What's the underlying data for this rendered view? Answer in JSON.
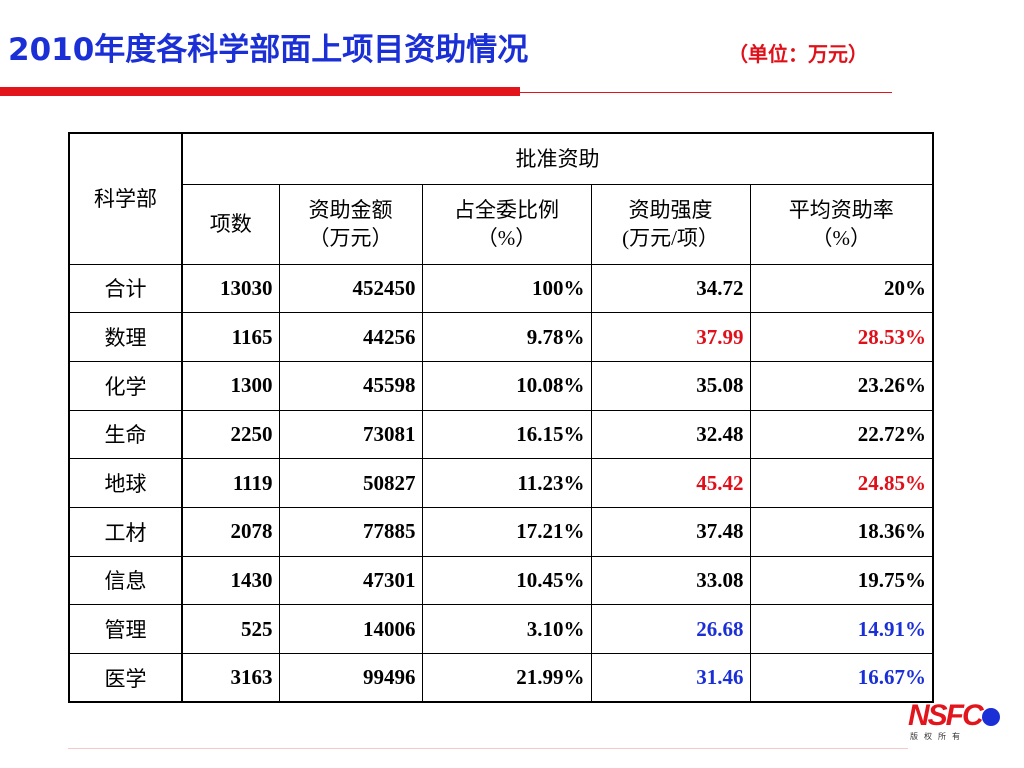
{
  "header": {
    "title": "2010年度各科学部面上项目资助情况",
    "unit": "（单位：万元）"
  },
  "table": {
    "corner_header": "科学部",
    "group_header": "批准资助",
    "columns": [
      [
        "项数"
      ],
      [
        "资助金额",
        "（万元）"
      ],
      [
        "占全委比例",
        "（%）"
      ],
      [
        "资助强度",
        "(万元/项）"
      ],
      [
        "平均资助率",
        "（%）"
      ]
    ],
    "rows": [
      {
        "name": "合计",
        "count": "13030",
        "amount": "452450",
        "share": "100%",
        "intensity": "34.72",
        "rate": "20%",
        "highlight": ""
      },
      {
        "name": "数理",
        "count": "1165",
        "amount": "44256",
        "share": "9.78%",
        "intensity": "37.99",
        "rate": "28.53%",
        "highlight": "red"
      },
      {
        "name": "化学",
        "count": "1300",
        "amount": "45598",
        "share": "10.08%",
        "intensity": "35.08",
        "rate": "23.26%",
        "highlight": ""
      },
      {
        "name": "生命",
        "count": "2250",
        "amount": "73081",
        "share": "16.15%",
        "intensity": "32.48",
        "rate": "22.72%",
        "highlight": ""
      },
      {
        "name": "地球",
        "count": "1119",
        "amount": "50827",
        "share": "11.23%",
        "intensity": "45.42",
        "rate": "24.85%",
        "highlight": "red"
      },
      {
        "name": "工材",
        "count": "2078",
        "amount": "77885",
        "share": "17.21%",
        "intensity": "37.48",
        "rate": "18.36%",
        "highlight": ""
      },
      {
        "name": "信息",
        "count": "1430",
        "amount": "47301",
        "share": "10.45%",
        "intensity": "33.08",
        "rate": "19.75%",
        "highlight": ""
      },
      {
        "name": "管理",
        "count": "525",
        "amount": "14006",
        "share": "3.10%",
        "intensity": "26.68",
        "rate": "14.91%",
        "highlight": "blue"
      },
      {
        "name": "医学",
        "count": "3163",
        "amount": "99496",
        "share": "21.99%",
        "intensity": "31.46",
        "rate": "16.67%",
        "highlight": "blue"
      }
    ]
  },
  "logo": {
    "text": "NSFC",
    "subtext": "版权所有"
  },
  "colors": {
    "title": "#1a2fd6",
    "accent_red": "#e2141c",
    "highlight_red": "#e0101a",
    "highlight_blue": "#1a2fd6"
  }
}
